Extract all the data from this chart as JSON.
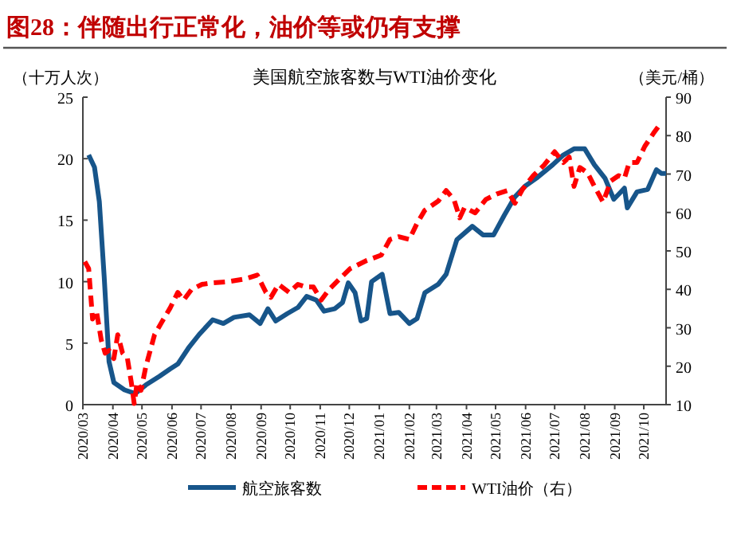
{
  "chart_data": {
    "type": "line",
    "title": "图28：伴随出行正常化，油价等或仍有支撑",
    "subtitle": "美国航空旅客数与WTI油价变化",
    "ylabel": "（十万人次）",
    "y2label": "（美元/桶）",
    "legend": "bottom",
    "grid": false,
    "xlim": [
      "2020-03-01",
      "2021-10-24"
    ],
    "xticks": [
      {
        "value": "2020-03-01",
        "label": "2020/03"
      },
      {
        "value": "2020-04-01",
        "label": "2020/04"
      },
      {
        "value": "2020-05-01",
        "label": "2020/05"
      },
      {
        "value": "2020-06-01",
        "label": "2020/06"
      },
      {
        "value": "2020-07-01",
        "label": "2020/07"
      },
      {
        "value": "2020-08-01",
        "label": "2020/08"
      },
      {
        "value": "2020-09-01",
        "label": "2020/09"
      },
      {
        "value": "2020-10-01",
        "label": "2020/10"
      },
      {
        "value": "2020-11-01",
        "label": "2020/11"
      },
      {
        "value": "2020-12-01",
        "label": "2020/12"
      },
      {
        "value": "2021-01-01",
        "label": "2021/01"
      },
      {
        "value": "2021-02-01",
        "label": "2021/02"
      },
      {
        "value": "2021-03-01",
        "label": "2021/03"
      },
      {
        "value": "2021-04-01",
        "label": "2021/04"
      },
      {
        "value": "2021-05-01",
        "label": "2021/05"
      },
      {
        "value": "2021-06-01",
        "label": "2021/06"
      },
      {
        "value": "2021-07-01",
        "label": "2021/07"
      },
      {
        "value": "2021-08-01",
        "label": "2021/08"
      },
      {
        "value": "2021-09-01",
        "label": "2021/09"
      },
      {
        "value": "2021-10-01",
        "label": "2021/10"
      }
    ],
    "ylim": [
      0,
      25
    ],
    "yticks": [
      0,
      5,
      10,
      15,
      20,
      25
    ],
    "y2lim": [
      10,
      90
    ],
    "y2ticks": [
      10,
      20,
      30,
      40,
      50,
      60,
      70,
      80,
      90
    ],
    "series": [
      {
        "name": "航空旅客数",
        "color": "#17558a",
        "line_style": "solid",
        "x": [
          "2020-03-07",
          "2020-03-13",
          "2020-03-18",
          "2020-03-23",
          "2020-03-28",
          "2020-04-02",
          "2020-04-13",
          "2020-04-24",
          "2020-05-05",
          "2020-05-19",
          "2020-05-30",
          "2020-06-07",
          "2020-06-18",
          "2020-06-29",
          "2020-07-13",
          "2020-07-24",
          "2020-08-04",
          "2020-08-20",
          "2020-08-31",
          "2020-09-08",
          "2020-09-16",
          "2020-09-28",
          "2020-10-09",
          "2020-10-18",
          "2020-10-28",
          "2020-11-05",
          "2020-11-16",
          "2020-11-24",
          "2020-11-30",
          "2020-12-07",
          "2020-12-13",
          "2020-12-19",
          "2020-12-24",
          "2021-01-04",
          "2021-01-12",
          "2021-01-21",
          "2021-02-01",
          "2021-02-09",
          "2021-02-17",
          "2021-03-03",
          "2021-03-11",
          "2021-03-22",
          "2021-04-07",
          "2021-04-18",
          "2021-04-29",
          "2021-05-10",
          "2021-05-21",
          "2021-06-01",
          "2021-06-12",
          "2021-06-29",
          "2021-07-10",
          "2021-07-21",
          "2021-08-01",
          "2021-08-11",
          "2021-08-22",
          "2021-08-31",
          "2021-09-05",
          "2021-09-11",
          "2021-09-14",
          "2021-09-24",
          "2021-10-05",
          "2021-10-14",
          "2021-10-19",
          "2021-10-24"
        ],
        "values": [
          20.3,
          19.3,
          16.5,
          10.4,
          3.5,
          1.8,
          1.2,
          0.9,
          1.6,
          2.3,
          2.9,
          3.3,
          4.6,
          5.7,
          6.9,
          6.6,
          7.1,
          7.3,
          6.6,
          7.8,
          6.8,
          7.4,
          7.9,
          8.8,
          8.5,
          7.6,
          7.8,
          8.3,
          9.9,
          9.1,
          6.8,
          7.0,
          10.0,
          10.6,
          7.4,
          7.5,
          6.6,
          7.0,
          9.1,
          9.8,
          10.6,
          13.4,
          14.5,
          13.8,
          13.8,
          15.4,
          16.9,
          17.8,
          18.4,
          19.5,
          20.3,
          20.8,
          20.8,
          19.5,
          18.4,
          16.7,
          17.1,
          17.6,
          16.0,
          17.3,
          17.5,
          19.1,
          18.8,
          18.8
        ]
      },
      {
        "name": "WTI油价（右）",
        "color": "#ff0000",
        "line_style": "dashed",
        "axis": "y2",
        "x": [
          "2020-03-03",
          "2020-03-07",
          "2020-03-11",
          "2020-03-15",
          "2020-03-20",
          "2020-03-24",
          "2020-03-28",
          "2020-04-02",
          "2020-04-06",
          "2020-04-11",
          "2020-04-16",
          "2020-04-20",
          "2020-04-23",
          "2020-04-26",
          "2020-04-30",
          "2020-05-05",
          "2020-05-14",
          "2020-05-22",
          "2020-05-30",
          "2020-06-07",
          "2020-06-13",
          "2020-06-21",
          "2020-07-02",
          "2020-07-13",
          "2020-07-29",
          "2020-08-15",
          "2020-08-28",
          "2020-09-06",
          "2020-09-11",
          "2020-09-19",
          "2020-09-30",
          "2020-10-09",
          "2020-10-17",
          "2020-10-25",
          "2020-11-02",
          "2020-11-10",
          "2020-11-21",
          "2020-12-02",
          "2020-12-19",
          "2021-01-03",
          "2021-01-12",
          "2021-01-21",
          "2021-02-01",
          "2021-02-09",
          "2021-02-17",
          "2021-03-03",
          "2021-03-11",
          "2021-03-19",
          "2021-03-25",
          "2021-03-30",
          "2021-04-10",
          "2021-04-21",
          "2021-05-02",
          "2021-05-13",
          "2021-05-21",
          "2021-05-29",
          "2021-06-09",
          "2021-06-20",
          "2021-07-01",
          "2021-07-10",
          "2021-07-16",
          "2021-07-21",
          "2021-07-27",
          "2021-08-04",
          "2021-08-11",
          "2021-08-20",
          "2021-08-28",
          "2021-09-05",
          "2021-09-11",
          "2021-09-16",
          "2021-09-24",
          "2021-10-02",
          "2021-10-11",
          "2021-10-19"
        ],
        "values": [
          47.2,
          45.4,
          32.3,
          34.4,
          26.8,
          23.4,
          24.1,
          22.0,
          28.2,
          23.4,
          22.0,
          15.8,
          10.3,
          15.8,
          13.7,
          19.9,
          28.2,
          31.7,
          35.1,
          39.2,
          37.2,
          39.9,
          41.3,
          41.7,
          42.0,
          42.7,
          43.7,
          39.2,
          37.9,
          41.3,
          39.2,
          41.3,
          40.6,
          40.6,
          37.2,
          39.9,
          42.7,
          45.4,
          47.5,
          48.9,
          53.0,
          53.7,
          53.0,
          57.2,
          60.6,
          63.0,
          65.7,
          63.4,
          58.6,
          61.3,
          59.9,
          63.4,
          64.8,
          65.7,
          62.4,
          66.1,
          69.6,
          72.3,
          75.8,
          73.0,
          74.4,
          66.8,
          71.7,
          70.3,
          66.8,
          62.7,
          68.2,
          69.6,
          68.9,
          73.0,
          73.0,
          77.2,
          80.6,
          83.4
        ]
      }
    ]
  }
}
